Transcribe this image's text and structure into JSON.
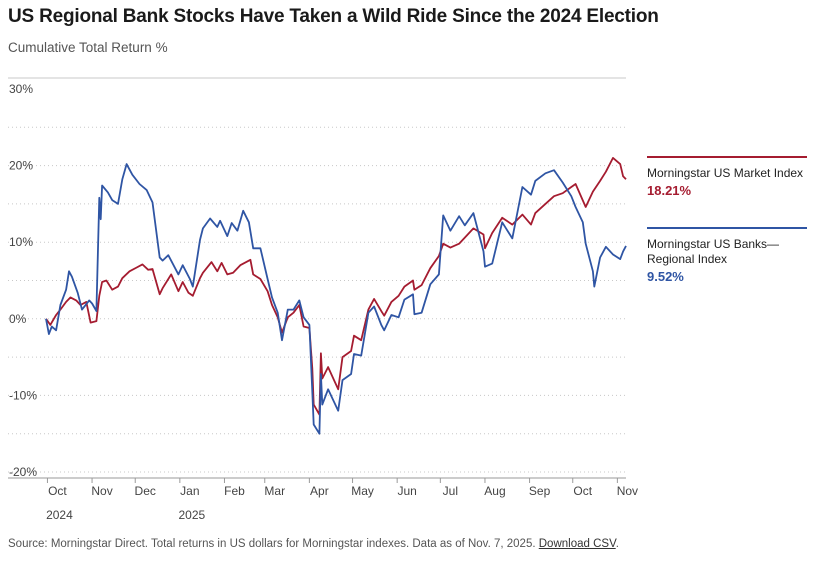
{
  "title": "US Regional Bank Stocks Have Taken a Wild Ride Since the 2024 Election",
  "subtitle": "Cumulative Total Return %",
  "source_text": "Source: Morningstar Direct. Total returns in US dollars for Morningstar indexes. Data as of Nov. 7, 2025.",
  "download_label": "Download CSV",
  "colors": {
    "market": "#a51c30",
    "banks": "#2f55a4",
    "grid": "#c8c8c8",
    "axis": "#9a9a9a"
  },
  "legend": [
    {
      "name_line1": "Morningstar US Market Index",
      "name_line2": "",
      "value": "18.21%",
      "series": "market"
    },
    {
      "name_line1": "Morningstar US Banks—",
      "name_line2": "Regional Index",
      "value": "9.52%",
      "series": "banks"
    }
  ],
  "chart_data": {
    "type": "line",
    "title": "US Regional Bank Stocks Have Taken a Wild Ride Since the 2024 Election",
    "ylabel": "Cumulative Total Return %",
    "xlabel": "",
    "ylim": [
      -20,
      30
    ],
    "yticks": [
      30,
      20,
      10,
      0,
      -10,
      -20
    ],
    "ytick_labels": [
      "30%",
      "20%",
      "10%",
      "0%",
      "-10%",
      "-20%"
    ],
    "xlim": [
      "2024-09-30",
      "2025-11-07"
    ],
    "xticks": [
      {
        "date": "2024-10-01",
        "label": "Oct",
        "year": "2024"
      },
      {
        "date": "2024-11-01",
        "label": "Nov",
        "year": ""
      },
      {
        "date": "2024-12-01",
        "label": "Dec",
        "year": ""
      },
      {
        "date": "2025-01-01",
        "label": "Jan",
        "year": "2025"
      },
      {
        "date": "2025-02-01",
        "label": "Feb",
        "year": ""
      },
      {
        "date": "2025-03-01",
        "label": "Mar",
        "year": ""
      },
      {
        "date": "2025-04-01",
        "label": "Apr",
        "year": ""
      },
      {
        "date": "2025-05-01",
        "label": "May",
        "year": ""
      },
      {
        "date": "2025-06-01",
        "label": "Jun",
        "year": ""
      },
      {
        "date": "2025-07-01",
        "label": "Jul",
        "year": ""
      },
      {
        "date": "2025-08-01",
        "label": "Aug",
        "year": ""
      },
      {
        "date": "2025-09-01",
        "label": "Sep",
        "year": ""
      },
      {
        "date": "2025-10-01",
        "label": "Oct",
        "year": ""
      },
      {
        "date": "2025-11-01",
        "label": "Nov",
        "year": ""
      }
    ],
    "grid": "horizontal dotted",
    "legend_position": "right",
    "series": [
      {
        "name": "Morningstar US Market Index",
        "color": "#a51c30",
        "points": [
          [
            "2024-09-30",
            0
          ],
          [
            "2024-10-03",
            -0.8
          ],
          [
            "2024-10-07",
            0.5
          ],
          [
            "2024-10-10",
            1.2
          ],
          [
            "2024-10-14",
            2.2
          ],
          [
            "2024-10-17",
            2.8
          ],
          [
            "2024-10-21",
            2.4
          ],
          [
            "2024-10-24",
            1.8
          ],
          [
            "2024-10-28",
            2.2
          ],
          [
            "2024-10-31",
            -0.5
          ],
          [
            "2024-11-04",
            -0.3
          ],
          [
            "2024-11-06",
            3.0
          ],
          [
            "2024-11-08",
            4.8
          ],
          [
            "2024-11-11",
            5.0
          ],
          [
            "2024-11-15",
            3.8
          ],
          [
            "2024-11-19",
            4.2
          ],
          [
            "2024-11-22",
            5.3
          ],
          [
            "2024-11-27",
            6.2
          ],
          [
            "2024-12-02",
            6.7
          ],
          [
            "2024-12-06",
            7.1
          ],
          [
            "2024-12-10",
            6.4
          ],
          [
            "2024-12-13",
            6.5
          ],
          [
            "2024-12-18",
            3.2
          ],
          [
            "2024-12-20",
            4.0
          ],
          [
            "2024-12-26",
            5.8
          ],
          [
            "2024-12-31",
            3.6
          ],
          [
            "2025-01-03",
            4.8
          ],
          [
            "2025-01-07",
            3.4
          ],
          [
            "2025-01-10",
            3.0
          ],
          [
            "2025-01-15",
            5.3
          ],
          [
            "2025-01-17",
            6.0
          ],
          [
            "2025-01-23",
            7.4
          ],
          [
            "2025-01-27",
            6.2
          ],
          [
            "2025-01-30",
            7.3
          ],
          [
            "2025-02-03",
            5.8
          ],
          [
            "2025-02-07",
            6.0
          ],
          [
            "2025-02-12",
            7.0
          ],
          [
            "2025-02-19",
            7.7
          ],
          [
            "2025-02-21",
            5.8
          ],
          [
            "2025-02-26",
            5.2
          ],
          [
            "2025-03-03",
            3.6
          ],
          [
            "2025-03-06",
            1.8
          ],
          [
            "2025-03-10",
            0.2
          ],
          [
            "2025-03-13",
            -1.8
          ],
          [
            "2025-03-17",
            0.2
          ],
          [
            "2025-03-21",
            0.8
          ],
          [
            "2025-03-25",
            1.8
          ],
          [
            "2025-03-28",
            -1.0
          ],
          [
            "2025-04-01",
            -1.2
          ],
          [
            "2025-04-03",
            -6.5
          ],
          [
            "2025-04-04",
            -11.2
          ],
          [
            "2025-04-08",
            -12.5
          ],
          [
            "2025-04-09",
            -4.5
          ],
          [
            "2025-04-10",
            -7.8
          ],
          [
            "2025-04-14",
            -6.3
          ],
          [
            "2025-04-21",
            -9.2
          ],
          [
            "2025-04-24",
            -5.0
          ],
          [
            "2025-04-30",
            -4.2
          ],
          [
            "2025-05-02",
            -2.2
          ],
          [
            "2025-05-07",
            -2.8
          ],
          [
            "2025-05-12",
            1.2
          ],
          [
            "2025-05-16",
            2.6
          ],
          [
            "2025-05-21",
            1.0
          ],
          [
            "2025-05-23",
            0.4
          ],
          [
            "2025-05-28",
            2.2
          ],
          [
            "2025-06-02",
            3.0
          ],
          [
            "2025-06-06",
            4.2
          ],
          [
            "2025-06-12",
            5.0
          ],
          [
            "2025-06-13",
            3.8
          ],
          [
            "2025-06-18",
            4.4
          ],
          [
            "2025-06-24",
            6.6
          ],
          [
            "2025-06-30",
            8.2
          ],
          [
            "2025-07-03",
            9.8
          ],
          [
            "2025-07-08",
            9.3
          ],
          [
            "2025-07-14",
            9.8
          ],
          [
            "2025-07-18",
            10.6
          ],
          [
            "2025-07-24",
            11.8
          ],
          [
            "2025-07-31",
            11.0
          ],
          [
            "2025-08-01",
            9.2
          ],
          [
            "2025-08-06",
            11.2
          ],
          [
            "2025-08-13",
            13.2
          ],
          [
            "2025-08-20",
            12.3
          ],
          [
            "2025-08-27",
            13.6
          ],
          [
            "2025-09-02",
            12.3
          ],
          [
            "2025-09-05",
            13.8
          ],
          [
            "2025-09-12",
            15.0
          ],
          [
            "2025-09-18",
            16.0
          ],
          [
            "2025-09-24",
            16.4
          ],
          [
            "2025-09-30",
            17.2
          ],
          [
            "2025-10-03",
            17.6
          ],
          [
            "2025-10-10",
            14.6
          ],
          [
            "2025-10-15",
            16.6
          ],
          [
            "2025-10-20",
            18.0
          ],
          [
            "2025-10-24",
            19.2
          ],
          [
            "2025-10-29",
            21.0
          ],
          [
            "2025-11-03",
            20.2
          ],
          [
            "2025-11-05",
            18.6
          ],
          [
            "2025-11-07",
            18.21
          ]
        ]
      },
      {
        "name": "Morningstar US Banks—Regional Index",
        "color": "#2f55a4",
        "points": [
          [
            "2024-09-30",
            0
          ],
          [
            "2024-10-02",
            -2.0
          ],
          [
            "2024-10-04",
            -1.0
          ],
          [
            "2024-10-07",
            -1.5
          ],
          [
            "2024-10-10",
            1.8
          ],
          [
            "2024-10-14",
            3.8
          ],
          [
            "2024-10-16",
            6.2
          ],
          [
            "2024-10-18",
            5.5
          ],
          [
            "2024-10-22",
            3.4
          ],
          [
            "2024-10-25",
            1.2
          ],
          [
            "2024-10-30",
            2.4
          ],
          [
            "2024-11-01",
            2.0
          ],
          [
            "2024-11-04",
            1.0
          ],
          [
            "2024-11-06",
            15.8
          ],
          [
            "2024-11-07",
            13.0
          ],
          [
            "2024-11-08",
            17.4
          ],
          [
            "2024-11-12",
            16.5
          ],
          [
            "2024-11-15",
            15.5
          ],
          [
            "2024-11-19",
            15.0
          ],
          [
            "2024-11-22",
            18.2
          ],
          [
            "2024-11-25",
            20.2
          ],
          [
            "2024-11-29",
            18.8
          ],
          [
            "2024-12-04",
            17.6
          ],
          [
            "2024-12-09",
            16.8
          ],
          [
            "2024-12-13",
            15.2
          ],
          [
            "2024-12-18",
            8.0
          ],
          [
            "2024-12-20",
            7.6
          ],
          [
            "2024-12-24",
            8.3
          ],
          [
            "2024-12-31",
            5.8
          ],
          [
            "2025-01-03",
            7.0
          ],
          [
            "2025-01-08",
            5.2
          ],
          [
            "2025-01-10",
            4.2
          ],
          [
            "2025-01-15",
            10.3
          ],
          [
            "2025-01-17",
            11.8
          ],
          [
            "2025-01-22",
            13.1
          ],
          [
            "2025-01-27",
            12.0
          ],
          [
            "2025-01-29",
            12.8
          ],
          [
            "2025-02-03",
            10.8
          ],
          [
            "2025-02-06",
            12.5
          ],
          [
            "2025-02-10",
            11.5
          ],
          [
            "2025-02-14",
            14.1
          ],
          [
            "2025-02-18",
            12.6
          ],
          [
            "2025-02-21",
            9.2
          ],
          [
            "2025-02-26",
            9.2
          ],
          [
            "2025-03-03",
            5.2
          ],
          [
            "2025-03-06",
            2.8
          ],
          [
            "2025-03-10",
            0.8
          ],
          [
            "2025-03-13",
            -2.8
          ],
          [
            "2025-03-17",
            1.2
          ],
          [
            "2025-03-21",
            1.2
          ],
          [
            "2025-03-25",
            2.4
          ],
          [
            "2025-03-28",
            0.2
          ],
          [
            "2025-04-01",
            -0.8
          ],
          [
            "2025-04-03",
            -9.5
          ],
          [
            "2025-04-04",
            -13.8
          ],
          [
            "2025-04-08",
            -15.0
          ],
          [
            "2025-04-09",
            -7.2
          ],
          [
            "2025-04-10",
            -11.2
          ],
          [
            "2025-04-14",
            -9.2
          ],
          [
            "2025-04-21",
            -12.0
          ],
          [
            "2025-04-24",
            -8.0
          ],
          [
            "2025-04-30",
            -7.2
          ],
          [
            "2025-05-02",
            -4.6
          ],
          [
            "2025-05-07",
            -4.8
          ],
          [
            "2025-05-12",
            0.8
          ],
          [
            "2025-05-16",
            1.6
          ],
          [
            "2025-05-21",
            -0.8
          ],
          [
            "2025-05-23",
            -1.5
          ],
          [
            "2025-05-28",
            0.5
          ],
          [
            "2025-06-02",
            0.2
          ],
          [
            "2025-06-06",
            2.5
          ],
          [
            "2025-06-12",
            3.2
          ],
          [
            "2025-06-13",
            0.6
          ],
          [
            "2025-06-18",
            0.8
          ],
          [
            "2025-06-24",
            4.5
          ],
          [
            "2025-06-30",
            5.8
          ],
          [
            "2025-07-03",
            13.5
          ],
          [
            "2025-07-08",
            11.5
          ],
          [
            "2025-07-14",
            13.4
          ],
          [
            "2025-07-18",
            12.2
          ],
          [
            "2025-07-24",
            13.8
          ],
          [
            "2025-07-31",
            8.8
          ],
          [
            "2025-08-01",
            6.8
          ],
          [
            "2025-08-06",
            7.2
          ],
          [
            "2025-08-13",
            12.6
          ],
          [
            "2025-08-20",
            10.5
          ],
          [
            "2025-08-27",
            17.2
          ],
          [
            "2025-09-02",
            16.2
          ],
          [
            "2025-09-05",
            18.0
          ],
          [
            "2025-09-12",
            19.0
          ],
          [
            "2025-09-18",
            19.4
          ],
          [
            "2025-09-24",
            17.8
          ],
          [
            "2025-09-30",
            16.0
          ],
          [
            "2025-10-03",
            14.6
          ],
          [
            "2025-10-08",
            12.6
          ],
          [
            "2025-10-10",
            9.8
          ],
          [
            "2025-10-15",
            6.2
          ],
          [
            "2025-10-16",
            4.2
          ],
          [
            "2025-10-20",
            8.0
          ],
          [
            "2025-10-24",
            9.4
          ],
          [
            "2025-10-29",
            8.4
          ],
          [
            "2025-11-03",
            7.8
          ],
          [
            "2025-11-05",
            8.8
          ],
          [
            "2025-11-07",
            9.52
          ]
        ]
      }
    ]
  }
}
